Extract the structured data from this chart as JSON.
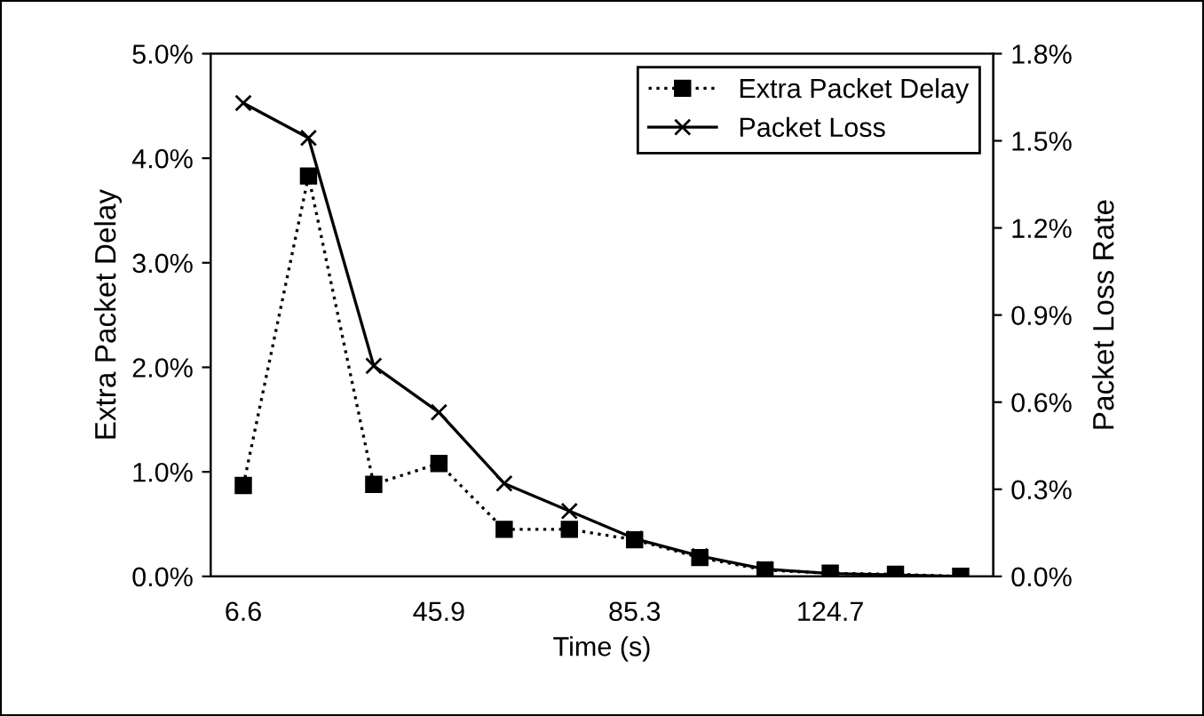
{
  "chart_data": {
    "type": "line",
    "xlabel": "Time (s)",
    "ylabel": "Extra Packet Delay",
    "y2label": "Packet Loss Rate",
    "categories": [
      "6.6",
      null,
      null,
      "45.9",
      null,
      null,
      "85.3",
      null,
      null,
      "124.7",
      null,
      null
    ],
    "series": [
      {
        "name": "Extra Packet Delay",
        "color": "#000000",
        "marker": "square",
        "line_style": "dotted",
        "values": [
          0.87,
          3.83,
          0.88,
          1.08,
          0.45,
          0.45,
          0.35,
          0.18,
          0.06,
          0.03,
          0.02,
          0.0
        ]
      },
      {
        "name": "Packet Loss",
        "color": "#000000",
        "marker": "cross",
        "line_style": "solid",
        "axis": "y2",
        "values": [
          1.63,
          1.51,
          0.725,
          0.565,
          0.32,
          0.225,
          0.13,
          0.07,
          0.025,
          0.01,
          0.005,
          0.0
        ]
      }
    ],
    "ylim": [
      0,
      5
    ],
    "yticks": [
      {
        "value": 0,
        "label": "0.0%"
      },
      {
        "value": 1,
        "label": "1.0%"
      },
      {
        "value": 2,
        "label": "2.0%"
      },
      {
        "value": 3,
        "label": "3.0%"
      },
      {
        "value": 4,
        "label": "4.0%"
      },
      {
        "value": 5,
        "label": "5.0%"
      }
    ],
    "y2lim": [
      0,
      1.8
    ],
    "y2ticks": [
      {
        "value": 0,
        "label": "0.0%"
      },
      {
        "value": 0.3,
        "label": "0.3%"
      },
      {
        "value": 0.6,
        "label": "0.6%"
      },
      {
        "value": 0.9,
        "label": "0.9%"
      },
      {
        "value": 1.2,
        "label": "1.2%"
      },
      {
        "value": 1.5,
        "label": "1.5%"
      },
      {
        "value": 1.8,
        "label": "1.8%"
      }
    ],
    "legend": "top right",
    "grid": false
  }
}
